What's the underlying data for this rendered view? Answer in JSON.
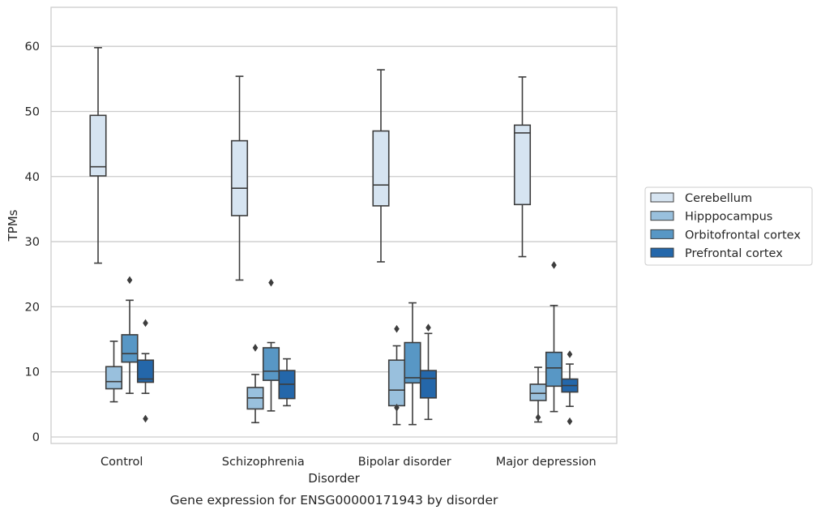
{
  "caption": "Gene expression for ENSG00000171943 by disorder",
  "chart_data": {
    "type": "box",
    "xlabel": "Disorder",
    "ylabel": "TPMs",
    "ylim": [
      -1,
      66
    ],
    "yticks": [
      0,
      10,
      20,
      30,
      40,
      50,
      60
    ],
    "grid": true,
    "legend_position": "right",
    "categories": [
      "Control",
      "Schizophrenia",
      "Bipolar disorder",
      "Major depression"
    ],
    "series": [
      {
        "name": "Cerebellum",
        "color": "#d6e4f1",
        "boxes": [
          {
            "whisker_low": 26.7,
            "q1": 40.1,
            "median": 41.5,
            "q3": 49.4,
            "whisker_high": 59.8,
            "outliers": []
          },
          {
            "whisker_low": 24.1,
            "q1": 34.0,
            "median": 38.2,
            "q3": 45.5,
            "whisker_high": 55.4,
            "outliers": []
          },
          {
            "whisker_low": 26.9,
            "q1": 35.5,
            "median": 38.7,
            "q3": 47.0,
            "whisker_high": 56.4,
            "outliers": []
          },
          {
            "whisker_low": 27.7,
            "q1": 35.7,
            "median": 46.7,
            "q3": 47.9,
            "whisker_high": 55.3,
            "outliers": []
          }
        ]
      },
      {
        "name": "Hipppocampus",
        "color": "#99c0dd",
        "boxes": [
          {
            "whisker_low": 5.4,
            "q1": 7.4,
            "median": 8.5,
            "q3": 10.8,
            "whisker_high": 14.7,
            "outliers": []
          },
          {
            "whisker_low": 2.2,
            "q1": 4.3,
            "median": 6.0,
            "q3": 7.6,
            "whisker_high": 9.6,
            "outliers": [
              13.7
            ]
          },
          {
            "whisker_low": 1.9,
            "q1": 4.8,
            "median": 7.2,
            "q3": 11.8,
            "whisker_high": 14.0,
            "outliers": [
              16.6,
              4.5
            ]
          },
          {
            "whisker_low": 2.3,
            "q1": 5.6,
            "median": 6.7,
            "q3": 8.1,
            "whisker_high": 10.7,
            "outliers": [
              3.0
            ]
          }
        ]
      },
      {
        "name": "Orbitofrontal cortex",
        "color": "#5897c5",
        "boxes": [
          {
            "whisker_low": 6.7,
            "q1": 11.5,
            "median": 12.8,
            "q3": 15.7,
            "whisker_high": 21.0,
            "outliers": [
              24.1
            ]
          },
          {
            "whisker_low": 4.0,
            "q1": 8.7,
            "median": 10.1,
            "q3": 13.7,
            "whisker_high": 14.5,
            "outliers": [
              23.7
            ]
          },
          {
            "whisker_low": 1.9,
            "q1": 8.3,
            "median": 9.1,
            "q3": 14.5,
            "whisker_high": 20.6,
            "outliers": []
          },
          {
            "whisker_low": 3.9,
            "q1": 7.8,
            "median": 10.6,
            "q3": 13.0,
            "whisker_high": 20.2,
            "outliers": [
              26.4
            ]
          }
        ]
      },
      {
        "name": "Prefrontal cortex",
        "color": "#2467aa",
        "boxes": [
          {
            "whisker_low": 6.7,
            "q1": 8.4,
            "median": 8.9,
            "q3": 11.8,
            "whisker_high": 12.8,
            "outliers": [
              17.5,
              2.8
            ]
          },
          {
            "whisker_low": 4.8,
            "q1": 5.9,
            "median": 8.1,
            "q3": 10.2,
            "whisker_high": 12.0,
            "outliers": []
          },
          {
            "whisker_low": 2.7,
            "q1": 6.0,
            "median": 9.0,
            "q3": 10.2,
            "whisker_high": 15.9,
            "outliers": [
              16.8
            ]
          },
          {
            "whisker_low": 4.7,
            "q1": 6.9,
            "median": 7.9,
            "q3": 8.9,
            "whisker_high": 11.2,
            "outliers": [
              12.7,
              2.4
            ]
          }
        ]
      }
    ]
  }
}
